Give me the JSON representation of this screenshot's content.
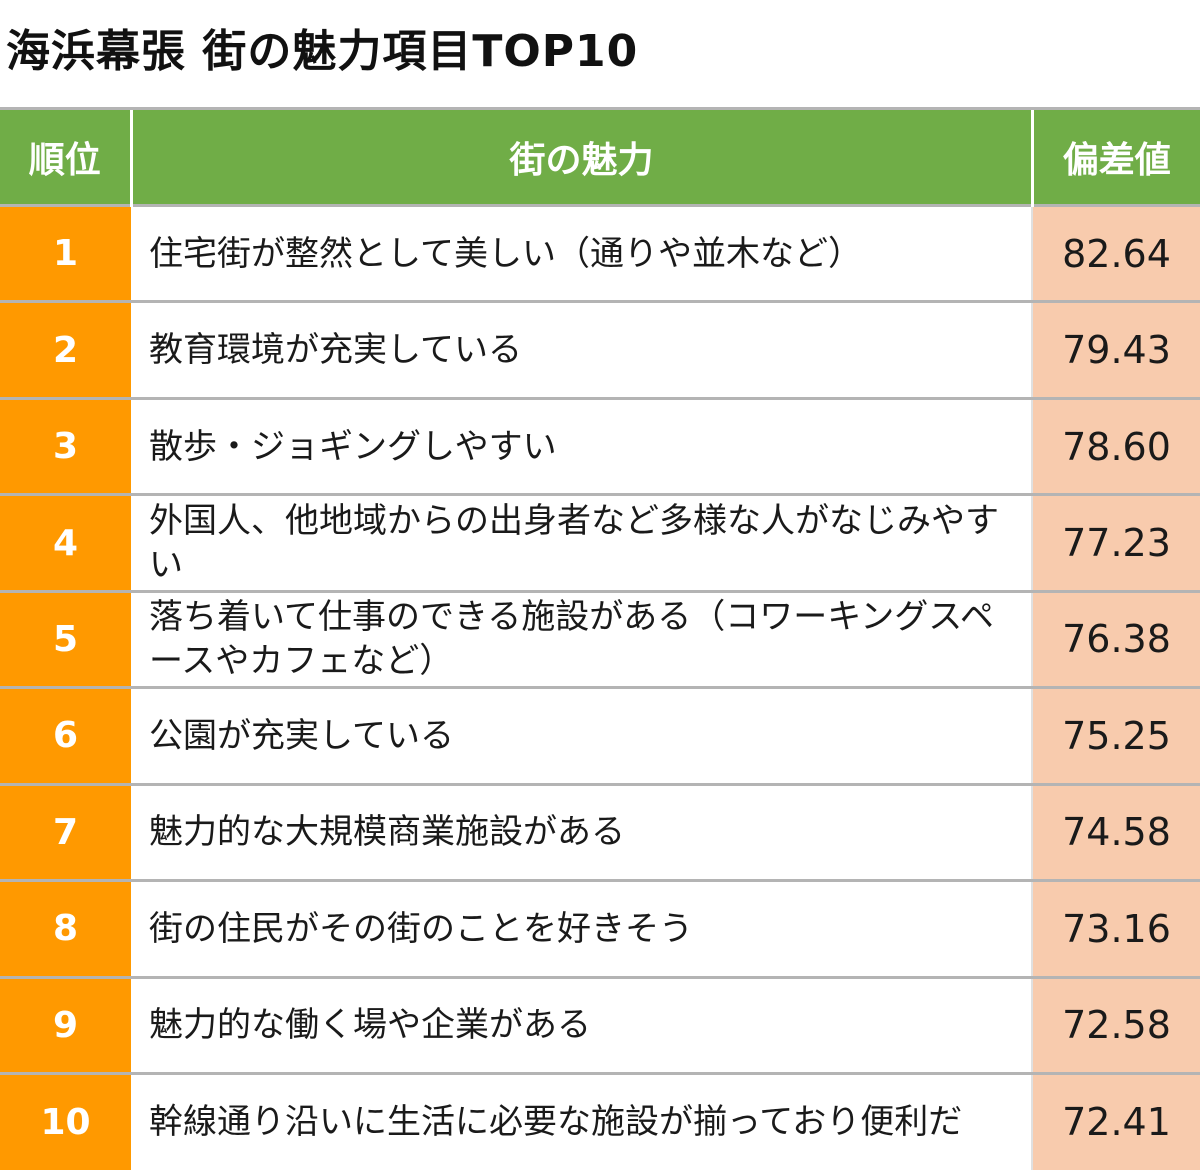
{
  "title": "海浜幕張 街の魅力項目TOP10",
  "chart_data": {
    "type": "table",
    "columns": [
      "順位",
      "街の魅力",
      "偏差値"
    ],
    "rows": [
      {
        "rank": "1",
        "item": "住宅街が整然として美しい（通りや並木など）",
        "score": "82.64"
      },
      {
        "rank": "2",
        "item": "教育環境が充実している",
        "score": "79.43"
      },
      {
        "rank": "3",
        "item": "散歩・ジョギングしやすい",
        "score": "78.60"
      },
      {
        "rank": "4",
        "item": "外国人、他地域からの出身者など多様な人がなじみやすい",
        "score": "77.23"
      },
      {
        "rank": "5",
        "item": "落ち着いて仕事のできる施設がある（コワーキングスペースやカフェなど）",
        "score": "76.38"
      },
      {
        "rank": "6",
        "item": "公園が充実している",
        "score": "75.25"
      },
      {
        "rank": "7",
        "item": "魅力的な大規模商業施設がある",
        "score": "74.58"
      },
      {
        "rank": "8",
        "item": "街の住民がその街のことを好きそう",
        "score": "73.16"
      },
      {
        "rank": "9",
        "item": "魅力的な働く場や企業がある",
        "score": "72.58"
      },
      {
        "rank": "10",
        "item": "幹線通り沿いに生活に必要な施設が揃っており便利だ",
        "score": "72.41"
      }
    ]
  },
  "colors": {
    "header_bg": "#70ad47",
    "rank_bg": "#ff9900",
    "score_bg": "#f8cbad"
  }
}
